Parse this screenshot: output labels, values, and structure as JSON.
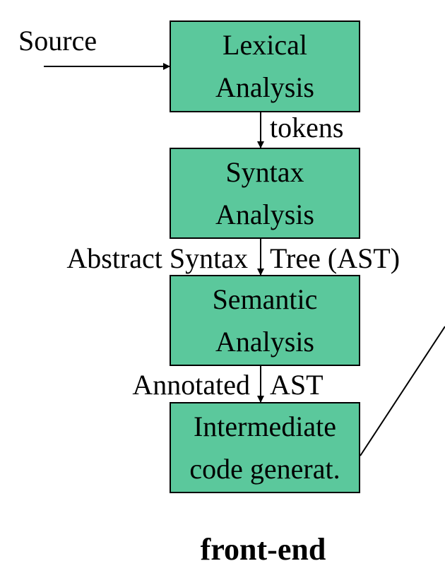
{
  "source_label": "Source",
  "stages": [
    {
      "line1": "Lexical",
      "line2": "Analysis"
    },
    {
      "line1": "Syntax",
      "line2": "Analysis"
    },
    {
      "line1": "Semantic",
      "line2": "Analysis"
    },
    {
      "line1": "Intermediate",
      "line2": "code generat."
    }
  ],
  "edges": {
    "tokens": "tokens",
    "ast_left": "Abstract Syntax",
    "ast_right": "Tree (AST)",
    "annotated_left": "Annotated",
    "annotated_right": "AST"
  },
  "footer": "front-end"
}
